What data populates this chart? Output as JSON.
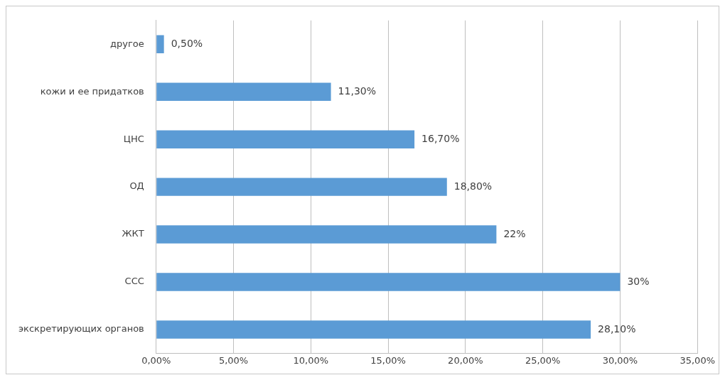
{
  "chart_data": {
    "type": "bar",
    "orientation": "horizontal",
    "categories": [
      "другое",
      "кожи и ее придатков",
      "ЦНС",
      "ОД",
      "ЖКТ",
      "ССС",
      "экскретирующих органов"
    ],
    "values": [
      0.5,
      11.3,
      16.7,
      18.8,
      22,
      30,
      28.1
    ],
    "value_labels": [
      "0,50%",
      "11,30%",
      "16,70%",
      "18,80%",
      "22%",
      "30%",
      "28,10%"
    ],
    "color": "#5b9bd5",
    "xlim": [
      0,
      35
    ],
    "xticks": [
      {
        "value": 0,
        "label": "0,00%"
      },
      {
        "value": 5,
        "label": "5,00%"
      },
      {
        "value": 10,
        "label": "10,00%"
      },
      {
        "value": 15,
        "label": "15,00%"
      },
      {
        "value": 20,
        "label": "20,00%"
      },
      {
        "value": 25,
        "label": "25,00%"
      },
      {
        "value": 30,
        "label": "30,00%"
      },
      {
        "value": 35,
        "label": "35,00%"
      }
    ],
    "grid": "x",
    "legend": false
  }
}
